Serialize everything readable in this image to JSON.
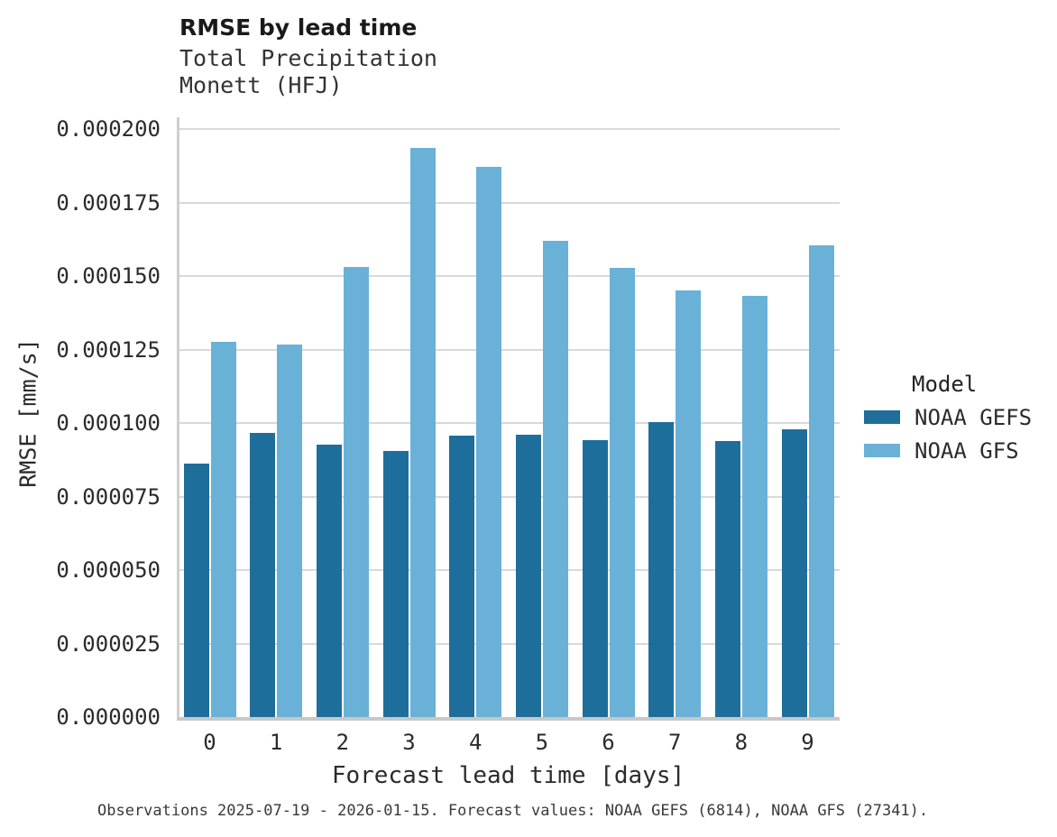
{
  "header": {
    "title": "RMSE by lead time",
    "subtitle_line1": "Total Precipitation",
    "subtitle_line2": "Monett (HFJ)"
  },
  "chart_data": {
    "type": "bar",
    "title": "RMSE by lead time",
    "subtitle": [
      "Total Precipitation",
      "Monett (HFJ)"
    ],
    "xlabel": "Forecast lead time [days]",
    "ylabel": "RMSE [mm/s]",
    "categories": [
      "0",
      "1",
      "2",
      "3",
      "4",
      "5",
      "6",
      "7",
      "8",
      "9"
    ],
    "series": [
      {
        "name": "NOAA GEFS",
        "color": "#1e6e9c",
        "values": [
          8.62e-05,
          9.65e-05,
          9.25e-05,
          9.05e-05,
          9.58e-05,
          9.6e-05,
          9.43e-05,
          0.0001003,
          9.38e-05,
          9.78e-05
        ]
      },
      {
        "name": "NOAA GFS",
        "color": "#6ab1d8",
        "values": [
          0.0001277,
          0.0001267,
          0.0001532,
          0.0001936,
          0.0001871,
          0.0001621,
          0.0001529,
          0.0001451,
          0.0001434,
          0.0001605
        ]
      }
    ],
    "ylim": [
      0,
      0.0002
    ],
    "ytick_values": [
      0,
      2.5e-05,
      5e-05,
      7.5e-05,
      0.0001,
      0.000125,
      0.00015,
      0.000175,
      0.0002
    ],
    "ytick_labels": [
      "0.000000",
      "0.000025",
      "0.000050",
      "0.000075",
      "0.000100",
      "0.000125",
      "0.000150",
      "0.000175",
      "0.000200"
    ],
    "grid": "horizontal",
    "legend": {
      "title": "Model",
      "position": "right",
      "entries": [
        "NOAA GEFS",
        "NOAA GFS"
      ]
    }
  },
  "footer": {
    "caption": "Observations 2025-07-19 - 2026-01-15. Forecast values: NOAA GEFS (6814), NOAA GFS (27341)."
  },
  "colors": {
    "grid": "#d9d9d9",
    "axis_spine": "#cfcfcf",
    "tick_text": "#2b2b2b",
    "caption_text": "#3a3a3a"
  }
}
